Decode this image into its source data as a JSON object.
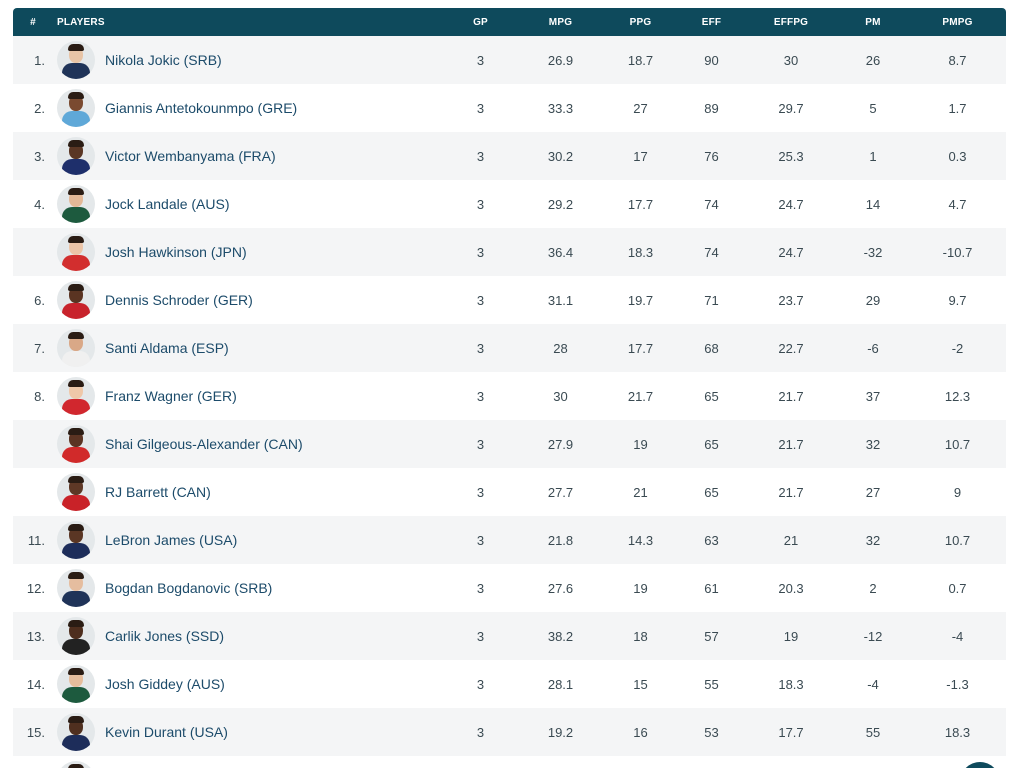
{
  "table": {
    "headers": {
      "rank": "#",
      "player": "PLAYERS",
      "gp": "GP",
      "mpg": "MPG",
      "ppg": "PPG",
      "eff": "EFF",
      "effpg": "EFFPG",
      "pm": "PM",
      "pmpg": "PMPG"
    },
    "rows": [
      {
        "rank": "1.",
        "player": "Nikola Jokic (SRB)",
        "gp": "3",
        "mpg": "26.9",
        "ppg": "18.7",
        "eff": "90",
        "effpg": "30",
        "pm": "26",
        "pmpg": "8.7",
        "jersey": "#1f3358",
        "skin": "#e8c4a6"
      },
      {
        "rank": "2.",
        "player": "Giannis Antetokounmpo (GRE)",
        "gp": "3",
        "mpg": "33.3",
        "ppg": "27",
        "eff": "89",
        "effpg": "29.7",
        "pm": "5",
        "pmpg": "1.7",
        "jersey": "#5fa8d8",
        "skin": "#7a4a30"
      },
      {
        "rank": "3.",
        "player": "Victor Wembanyama (FRA)",
        "gp": "3",
        "mpg": "30.2",
        "ppg": "17",
        "eff": "76",
        "effpg": "25.3",
        "pm": "1",
        "pmpg": "0.3",
        "jersey": "#1e2f6b",
        "skin": "#5a3624"
      },
      {
        "rank": "4.",
        "player": "Jock Landale (AUS)",
        "gp": "3",
        "mpg": "29.2",
        "ppg": "17.7",
        "eff": "74",
        "effpg": "24.7",
        "pm": "14",
        "pmpg": "4.7",
        "jersey": "#1d5a3e",
        "skin": "#e3b897"
      },
      {
        "rank": "",
        "player": "Josh Hawkinson (JPN)",
        "gp": "3",
        "mpg": "36.4",
        "ppg": "18.3",
        "eff": "74",
        "effpg": "24.7",
        "pm": "-32",
        "pmpg": "-10.7",
        "jersey": "#d22e2e",
        "skin": "#ecc5a8"
      },
      {
        "rank": "6.",
        "player": "Dennis Schroder (GER)",
        "gp": "3",
        "mpg": "31.1",
        "ppg": "19.7",
        "eff": "71",
        "effpg": "23.7",
        "pm": "29",
        "pmpg": "9.7",
        "jersey": "#c8232c",
        "skin": "#5a3422"
      },
      {
        "rank": "7.",
        "player": "Santi Aldama (ESP)",
        "gp": "3",
        "mpg": "28",
        "ppg": "17.7",
        "eff": "68",
        "effpg": "22.7",
        "pm": "-6",
        "pmpg": "-2",
        "jersey": "#f0f0f0",
        "skin": "#d9a887"
      },
      {
        "rank": "8.",
        "player": "Franz Wagner (GER)",
        "gp": "3",
        "mpg": "30",
        "ppg": "21.7",
        "eff": "65",
        "effpg": "21.7",
        "pm": "37",
        "pmpg": "12.3",
        "jersey": "#d1272e",
        "skin": "#efc8a9"
      },
      {
        "rank": "",
        "player": "Shai Gilgeous-Alexander (CAN)",
        "gp": "3",
        "mpg": "27.9",
        "ppg": "19",
        "eff": "65",
        "effpg": "21.7",
        "pm": "32",
        "pmpg": "10.7",
        "jersey": "#d12a2a",
        "skin": "#5b3423"
      },
      {
        "rank": "",
        "player": "RJ Barrett (CAN)",
        "gp": "3",
        "mpg": "27.7",
        "ppg": "21",
        "eff": "65",
        "effpg": "21.7",
        "pm": "27",
        "pmpg": "9",
        "jersey": "#c92228",
        "skin": "#5e3826"
      },
      {
        "rank": "11.",
        "player": "LeBron James (USA)",
        "gp": "3",
        "mpg": "21.8",
        "ppg": "14.3",
        "eff": "63",
        "effpg": "21",
        "pm": "32",
        "pmpg": "10.7",
        "jersey": "#1d2d5a",
        "skin": "#5a3624"
      },
      {
        "rank": "12.",
        "player": "Bogdan Bogdanovic (SRB)",
        "gp": "3",
        "mpg": "27.6",
        "ppg": "19",
        "eff": "61",
        "effpg": "20.3",
        "pm": "2",
        "pmpg": "0.7",
        "jersey": "#1f3358",
        "skin": "#e5bd9f"
      },
      {
        "rank": "13.",
        "player": "Carlik Jones (SSD)",
        "gp": "3",
        "mpg": "38.2",
        "ppg": "18",
        "eff": "57",
        "effpg": "19",
        "pm": "-12",
        "pmpg": "-4",
        "jersey": "#222222",
        "skin": "#4e2e1e"
      },
      {
        "rank": "14.",
        "player": "Josh Giddey (AUS)",
        "gp": "3",
        "mpg": "28.1",
        "ppg": "15",
        "eff": "55",
        "effpg": "18.3",
        "pm": "-4",
        "pmpg": "-1.3",
        "jersey": "#1d5a3e",
        "skin": "#e6bd9c"
      },
      {
        "rank": "15.",
        "player": "Kevin Durant (USA)",
        "gp": "3",
        "mpg": "19.2",
        "ppg": "16",
        "eff": "53",
        "effpg": "17.7",
        "pm": "55",
        "pmpg": "18.3",
        "jersey": "#1d2d5a",
        "skin": "#4f2f1f"
      },
      {
        "rank": "",
        "player": "",
        "gp": "",
        "mpg": "",
        "ppg": "",
        "eff": "",
        "effpg": "",
        "pm": "",
        "pmpg": "",
        "jersey": "#1f3358",
        "skin": "#d9a887"
      }
    ]
  },
  "colors": {
    "header_bg": "#0e4a5c",
    "row_alt_bg": "#f4f5f6",
    "player_link": "#1c4b6a"
  }
}
